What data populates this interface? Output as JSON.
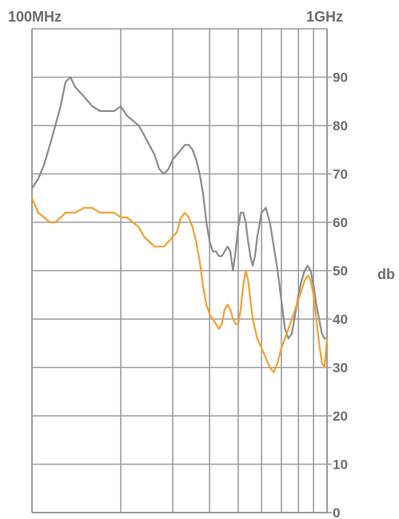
{
  "chart_data": {
    "type": "line",
    "x_scale": "log",
    "xlim": [
      100,
      1000
    ],
    "ylim": [
      0,
      100
    ],
    "x_labels": {
      "left": "100MHz",
      "right": "1GHz"
    },
    "y_ticks": [
      0,
      10,
      20,
      30,
      40,
      50,
      60,
      70,
      80,
      90
    ],
    "ylabel": "db",
    "grid": true,
    "colors": {
      "gray_series": "#8a8a8a",
      "orange_series": "#f0a030",
      "grid": "#9a9a9a",
      "text": "#6b6b6b"
    },
    "series": [
      {
        "color": "#8a8a8a",
        "x": [
          100,
          105,
          110,
          115,
          120,
          125,
          130,
          135,
          140,
          150,
          160,
          170,
          180,
          190,
          200,
          210,
          220,
          230,
          240,
          250,
          260,
          270,
          280,
          290,
          300,
          310,
          320,
          330,
          340,
          350,
          360,
          370,
          380,
          390,
          400,
          410,
          420,
          430,
          440,
          450,
          460,
          470,
          480,
          490,
          500,
          510,
          520,
          530,
          540,
          550,
          560,
          570,
          580,
          600,
          620,
          640,
          660,
          680,
          700,
          720,
          740,
          760,
          780,
          800,
          820,
          840,
          860,
          880,
          900,
          920,
          940,
          960,
          980,
          1000
        ],
        "values": [
          67,
          69,
          72,
          76,
          80,
          84,
          89,
          90,
          88,
          86,
          84,
          83,
          83,
          83,
          84,
          82,
          81,
          80,
          78,
          76,
          74,
          71,
          70,
          71,
          73,
          74,
          75,
          76,
          76,
          75,
          73,
          70,
          66,
          60,
          56,
          54,
          54,
          53,
          53,
          54,
          55,
          54,
          50,
          54,
          59,
          62,
          62,
          60,
          56,
          53,
          51,
          53,
          57,
          62,
          63,
          60,
          55,
          50,
          44,
          38,
          36,
          37,
          41,
          45,
          48,
          50,
          51,
          50,
          47,
          43,
          40,
          37,
          36,
          36
        ]
      },
      {
        "color": "#f0a030",
        "x": [
          100,
          105,
          110,
          115,
          120,
          125,
          130,
          140,
          150,
          160,
          170,
          180,
          190,
          200,
          210,
          220,
          230,
          240,
          250,
          260,
          270,
          280,
          290,
          300,
          310,
          320,
          330,
          340,
          350,
          360,
          370,
          380,
          390,
          400,
          410,
          420,
          430,
          440,
          450,
          460,
          470,
          480,
          490,
          500,
          510,
          520,
          530,
          540,
          550,
          560,
          570,
          580,
          600,
          620,
          640,
          660,
          680,
          700,
          720,
          740,
          760,
          780,
          800,
          820,
          840,
          860,
          880,
          900,
          920,
          940,
          960,
          980,
          1000
        ],
        "values": [
          65,
          62,
          61,
          60,
          60,
          61,
          62,
          62,
          63,
          63,
          62,
          62,
          62,
          61,
          61,
          60,
          59,
          57,
          56,
          55,
          55,
          55,
          56,
          57,
          58,
          61,
          62,
          61,
          59,
          56,
          52,
          47,
          43,
          41,
          40,
          39,
          38,
          39,
          42,
          43,
          42,
          40,
          39,
          39,
          42,
          47,
          50,
          48,
          44,
          40,
          38,
          36,
          34,
          32,
          30,
          29,
          31,
          34,
          36,
          38,
          40,
          42,
          44,
          46,
          48,
          49,
          48,
          45,
          40,
          35,
          31,
          30,
          36
        ]
      }
    ]
  }
}
